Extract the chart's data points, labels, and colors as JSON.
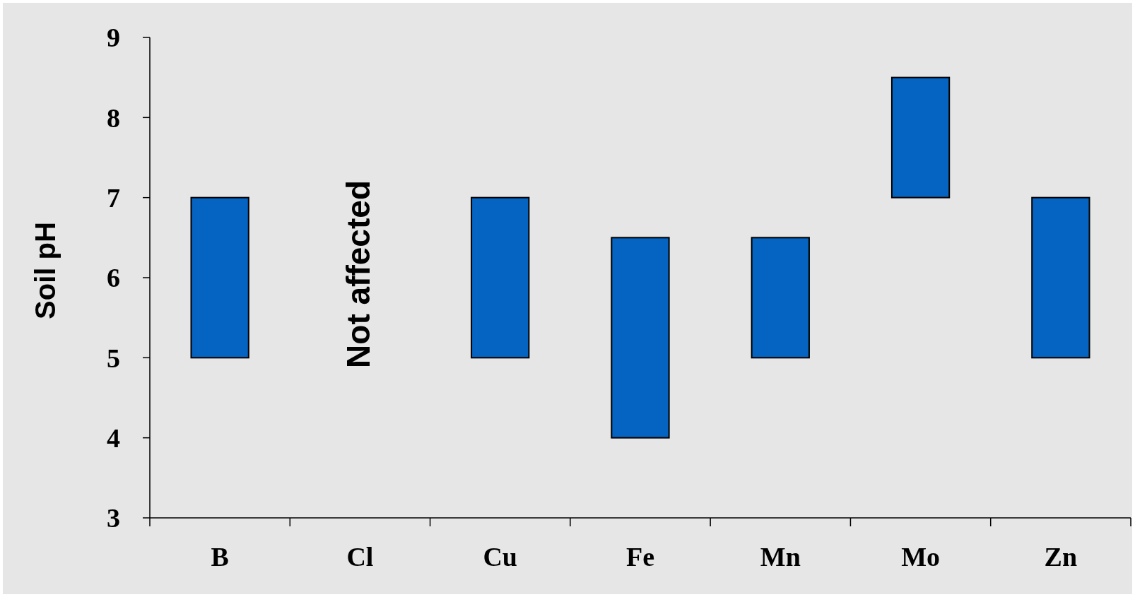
{
  "chart_data": {
    "type": "bar",
    "ylabel": "Soil pH",
    "categories": [
      "B",
      "Cl",
      "Cu",
      "Fe",
      "Mn",
      "Mo",
      "Zn"
    ],
    "base": [
      5,
      null,
      5,
      4,
      5,
      7,
      5
    ],
    "values": [
      2,
      null,
      2,
      2.5,
      1.5,
      1.5,
      2
    ],
    "color": "#0563c1",
    "ylim": [
      3,
      9
    ],
    "yticks": [
      3,
      4,
      5,
      6,
      7,
      8,
      9
    ],
    "grid": false,
    "annotations": [
      "Not affected"
    ]
  }
}
